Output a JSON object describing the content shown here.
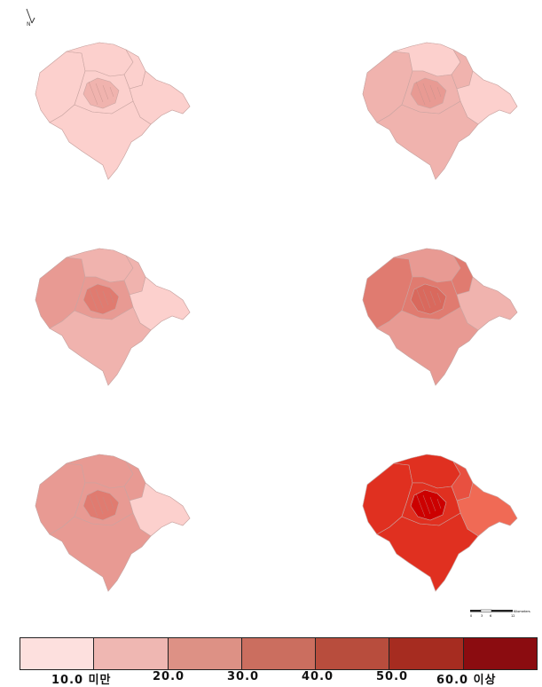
{
  "north": {
    "label": "N"
  },
  "scale": {
    "ticks": [
      "0",
      "3",
      "6",
      "12"
    ],
    "unit": "Kilometers"
  },
  "panels": [
    {
      "id": "p1",
      "fills": {
        "center": "#f0b3ae",
        "ring": "#fcd0cd",
        "west": "#fcd0cd",
        "north": "#fcd0cd",
        "east": "#fcd0cd",
        "south": "#fcd0cd",
        "ne": "#fcd0cd"
      }
    },
    {
      "id": "p2",
      "fills": {
        "center": "#e89a93",
        "ring": "#f0b3ae",
        "west": "#f0b3ae",
        "north": "#fcd0cd",
        "east": "#fcd0cd",
        "south": "#f0b3ae",
        "ne": "#f0b3ae"
      }
    },
    {
      "id": "p3",
      "fills": {
        "center": "#e07b70",
        "ring": "#e89a93",
        "west": "#e89a93",
        "north": "#f0b3ae",
        "east": "#fcd0cd",
        "south": "#f0b3ae",
        "ne": "#f0b3ae"
      }
    },
    {
      "id": "p4",
      "fills": {
        "center": "#d9695d",
        "ring": "#e07b70",
        "west": "#e07b70",
        "north": "#e89a93",
        "east": "#f0b3ae",
        "south": "#e89a93",
        "ne": "#e07b70"
      }
    },
    {
      "id": "p5",
      "fills": {
        "center": "#e07b70",
        "ring": "#e89a93",
        "west": "#e89a93",
        "north": "#e89a93",
        "east": "#fcd0cd",
        "south": "#e89a93",
        "ne": "#e89a93"
      }
    },
    {
      "id": "p6",
      "fills": {
        "center": "#cc0000",
        "ring": "#e03020",
        "west": "#e03020",
        "north": "#e03020",
        "east": "#f06a55",
        "south": "#e03020",
        "ne": "#e85040"
      }
    }
  ],
  "legend": {
    "colors": [
      "#fde0de",
      "#efb7b2",
      "#dd9185",
      "#cb6e5f",
      "#b84d3d",
      "#a62c20",
      "#8b0c10"
    ],
    "labels": [
      "10.0 미만",
      "20.0",
      "30.0",
      "40.0",
      "50.0",
      "60.0 이상"
    ]
  }
}
